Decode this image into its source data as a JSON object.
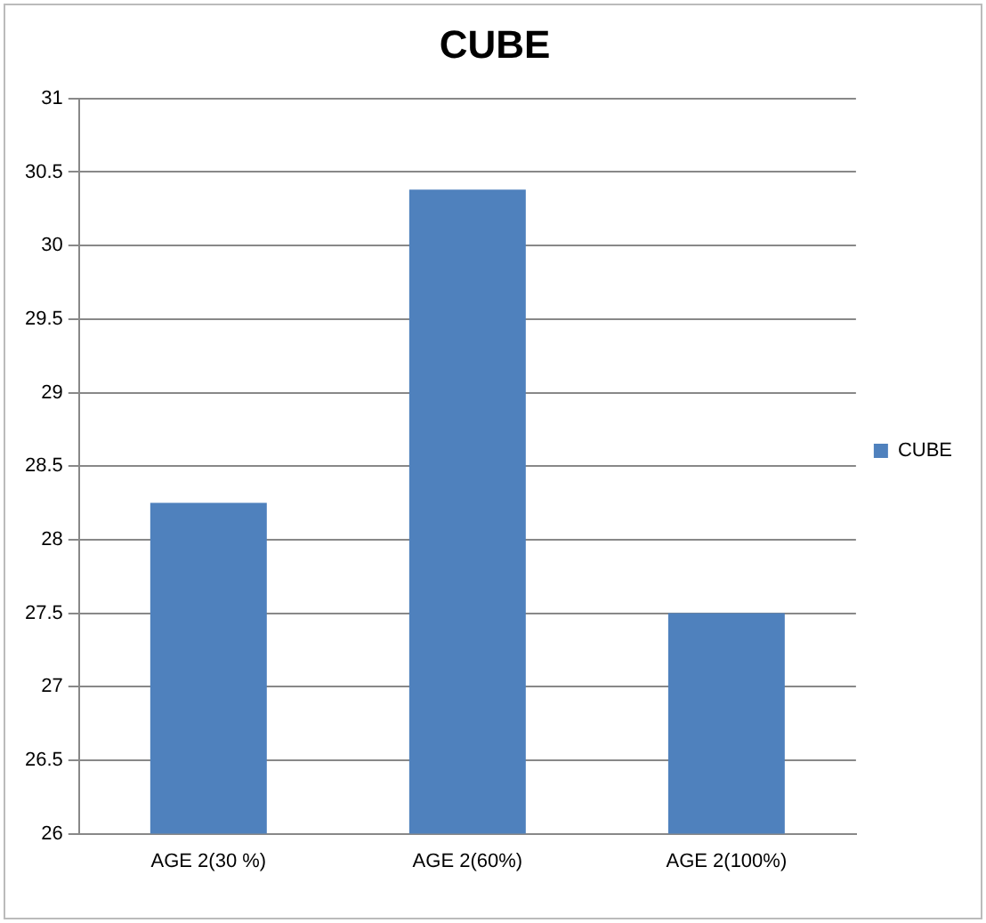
{
  "chart_data": {
    "type": "bar",
    "title": "CUBE",
    "categories": [
      "AGE 2(30 %)",
      "AGE 2(60%)",
      "AGE 2(100%)"
    ],
    "series": [
      {
        "name": "CUBE",
        "color": "#4f81bd",
        "values": [
          28.25,
          30.38,
          27.5
        ]
      }
    ],
    "ylim": [
      26,
      31
    ],
    "yticks": [
      26,
      26.5,
      27,
      27.5,
      28,
      28.5,
      29,
      29.5,
      30,
      30.5,
      31
    ],
    "grid": "y",
    "legend": "right"
  }
}
